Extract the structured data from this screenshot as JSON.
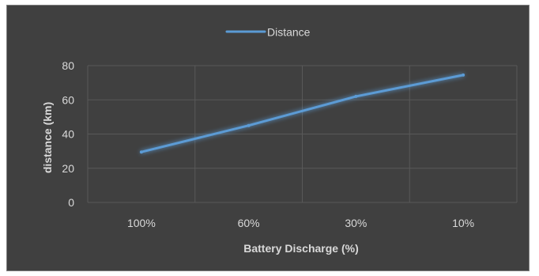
{
  "chart_data": {
    "type": "line",
    "categories": [
      "100%",
      "60%",
      "30%",
      "10%"
    ],
    "series": [
      {
        "name": "Distance",
        "values": [
          29.5,
          45,
          62,
          74.5
        ]
      }
    ],
    "title": "",
    "xlabel": "Battery Discharge (%)",
    "ylabel": "distance  (km)",
    "ylim": [
      0,
      80
    ],
    "yticks": [
      "0",
      "20",
      "40",
      "60",
      "80"
    ],
    "grid": true,
    "legend_position": "top",
    "colors": {
      "background": "#404040",
      "series": "#5b9bd5",
      "gridlines": "#595959",
      "text": "#d9d9d9"
    }
  }
}
